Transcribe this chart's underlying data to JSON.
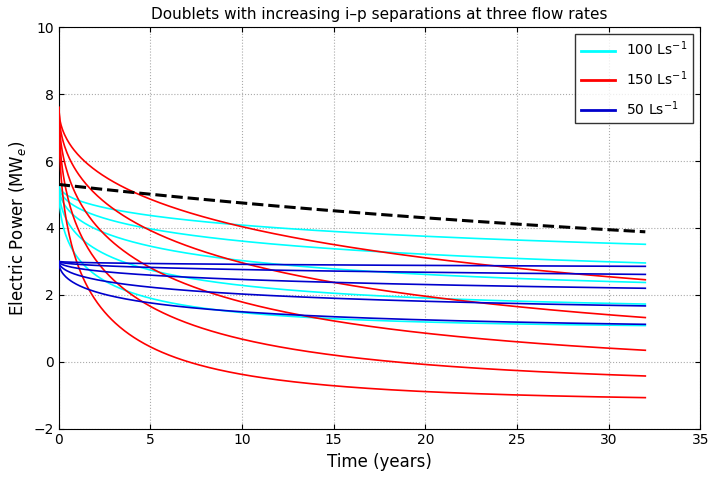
{
  "title": "Doublets with increasing i–p separations at three flow rates",
  "xlabel": "Time (years)",
  "ylabel": "Electric Power (MW$_e$)",
  "xlim": [
    0,
    35
  ],
  "ylim": [
    -2,
    10
  ],
  "yticks": [
    -2,
    0,
    2,
    4,
    6,
    8,
    10
  ],
  "xticks": [
    0,
    5,
    10,
    15,
    20,
    25,
    30,
    35
  ],
  "t_max": 32,
  "n_pts": 500,
  "flow_rates": [
    {
      "name": "100 Ls$^{-1}$",
      "color": "#00FFFF",
      "curves": [
        {
          "P0": 5.3,
          "Pinf": 2.5,
          "k": 0.18
        },
        {
          "P0": 5.3,
          "Pinf": 2.2,
          "k": 0.25
        },
        {
          "P0": 5.3,
          "Pinf": 1.9,
          "k": 0.35
        },
        {
          "P0": 5.3,
          "Pinf": 1.5,
          "k": 0.5
        },
        {
          "P0": 5.3,
          "Pinf": 1.0,
          "k": 0.7
        }
      ]
    },
    {
      "name": "150 Ls$^{-1}$",
      "color": "#FF0000",
      "curves": [
        {
          "P0": 7.6,
          "Pinf": 0.0,
          "k": 0.2
        },
        {
          "P0": 7.6,
          "Pinf": -0.3,
          "k": 0.28
        },
        {
          "P0": 7.6,
          "Pinf": -0.5,
          "k": 0.4
        },
        {
          "P0": 7.6,
          "Pinf": -0.8,
          "k": 0.55
        },
        {
          "P0": 7.6,
          "Pinf": -1.2,
          "k": 0.75
        }
      ]
    },
    {
      "name": "50 Ls$^{-1}$",
      "color": "#0000CC",
      "curves": [
        {
          "P0": 3.0,
          "Pinf": 2.4,
          "k": 0.05
        },
        {
          "P0": 3.0,
          "Pinf": 2.1,
          "k": 0.1
        },
        {
          "P0": 3.0,
          "Pinf": 1.7,
          "k": 0.17
        },
        {
          "P0": 3.0,
          "Pinf": 1.3,
          "k": 0.27
        },
        {
          "P0": 3.0,
          "Pinf": 0.9,
          "k": 0.4
        }
      ]
    }
  ],
  "dashed": {
    "P0": 5.3,
    "Pinf": 2.5,
    "k": 0.022
  },
  "background_color": "#FFFFFF",
  "grid_color": "#AAAAAA"
}
